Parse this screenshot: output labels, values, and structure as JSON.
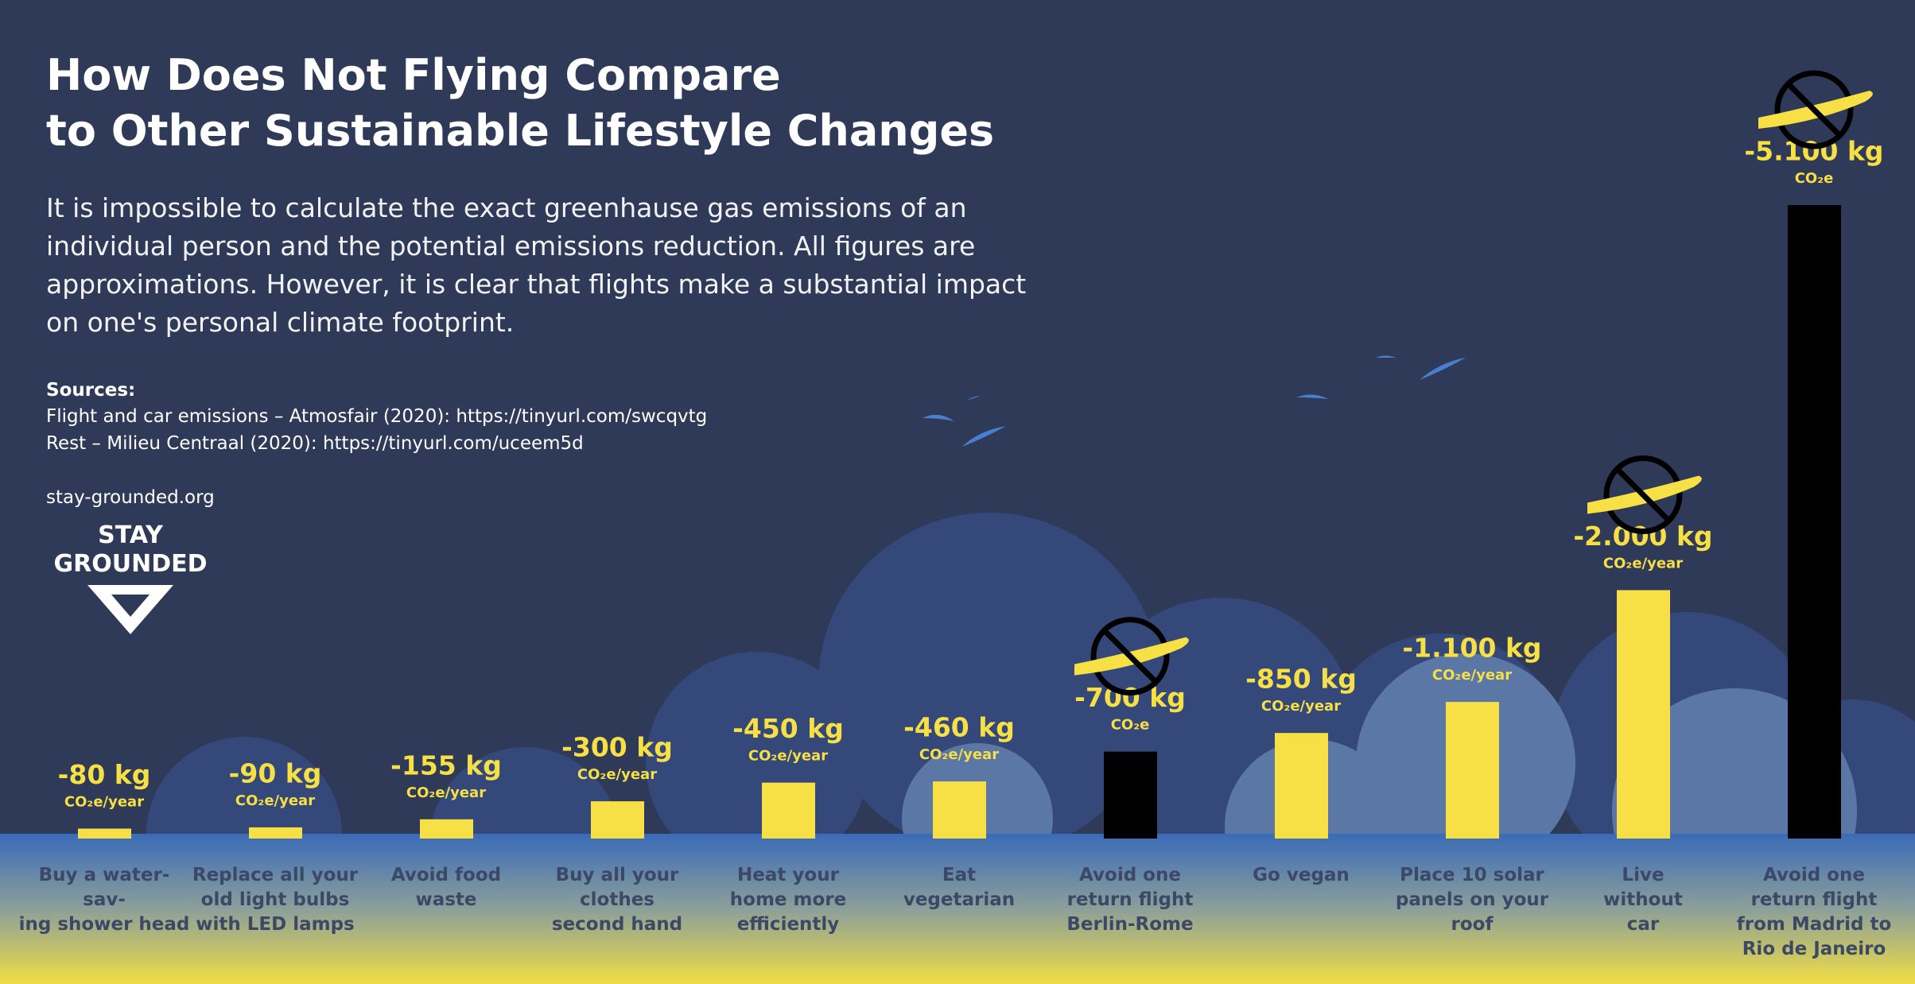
{
  "chart_data": {
    "type": "bar",
    "title": "How Does Not Flying Compare\nto Other Sustainable Lifestyle Changes",
    "description": "It is impossible to calculate the exact greenhause gas emissions of an individual person and the potential emissions reduction. All figures are approximations. However, it is clear that flights make a substantial impact on one's personal climate footprint.",
    "sources_heading": "Sources:",
    "sources": [
      "Flight and car emissions – Atmosfair (2020): https://tinyurl.com/swcqvtg",
      "Rest – Milieu Centraal (2020):  https://tinyurl.com/uceem5d"
    ],
    "website": "stay-grounded.org",
    "logo": "STAY\nGROUNDED",
    "categories": [
      "Buy a water-sav-\ning shower head",
      "Replace all your\nold light bulbs\nwith LED lamps",
      "Avoid food\nwaste",
      "Buy all your\nclothes\nsecond hand",
      "Heat your\nhome more\nefficiently",
      "Eat\nvegetarian",
      "Avoid one\nreturn flight\nBerlin-Rome",
      "Go vegan",
      "Place 10 solar\npanels on your\nroof",
      "Live\nwithout\ncar",
      "Avoid one\nreturn flight\nfrom Madrid to\nRio de Janeiro"
    ],
    "values": [
      -80,
      -90,
      -155,
      -300,
      -450,
      -460,
      -700,
      -850,
      -1100,
      -2000,
      -5100
    ],
    "value_labels": [
      "-80 kg",
      "-90 kg",
      "-155 kg",
      "-300 kg",
      "-450 kg",
      "-460 kg",
      "-700 kg",
      "-850 kg",
      "-1.100 kg",
      "-2.000 kg",
      "-5.100 kg"
    ],
    "value_units": [
      "CO₂e/year",
      "CO₂e/year",
      "CO₂e/year",
      "CO₂e/year",
      "CO₂e/year",
      "CO₂e/year",
      "CO₂e",
      "CO₂e/year",
      "CO₂e/year",
      "CO₂e/year",
      "CO₂e"
    ],
    "colors": [
      "#f7df46",
      "#f7df46",
      "#f7df46",
      "#f7df46",
      "#f7df46",
      "#f7df46",
      "#000000",
      "#f7df46",
      "#f7df46",
      "#f7df46",
      "#000000"
    ],
    "ylim": [
      0,
      -5100
    ]
  }
}
